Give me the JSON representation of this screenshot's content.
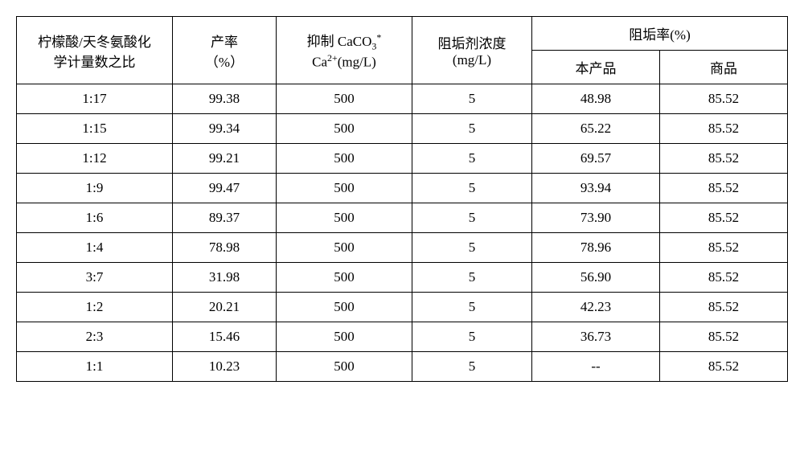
{
  "headers": {
    "ratio_line1": "柠檬酸/天冬氨酸化",
    "ratio_line2": "学计量数之比",
    "yield_line1": "产率",
    "yield_line2": "（%）",
    "caco3_prefix": "抑制 CaCO",
    "caco3_sub": "3",
    "caco3_sup": "*",
    "caco3_line2_ca": "Ca",
    "caco3_line2_sup": "2+",
    "caco3_line2_unit": "(mg/L)",
    "conc_line1": "阻垢剂浓度",
    "conc_line2": "(mg/L)",
    "rate": "阻垢率(%)",
    "rate_product": "本产品",
    "rate_commercial": "商品"
  },
  "rows": [
    {
      "ratio": "1:17",
      "yield": "99.38",
      "caco3": "500",
      "conc": "5",
      "product": "48.98",
      "commercial": "85.52"
    },
    {
      "ratio": "1:15",
      "yield": "99.34",
      "caco3": "500",
      "conc": "5",
      "product": "65.22",
      "commercial": "85.52"
    },
    {
      "ratio": "1:12",
      "yield": "99.21",
      "caco3": "500",
      "conc": "5",
      "product": "69.57",
      "commercial": "85.52"
    },
    {
      "ratio": "1:9",
      "yield": "99.47",
      "caco3": "500",
      "conc": "5",
      "product": "93.94",
      "commercial": "85.52"
    },
    {
      "ratio": "1:6",
      "yield": "89.37",
      "caco3": "500",
      "conc": "5",
      "product": "73.90",
      "commercial": "85.52"
    },
    {
      "ratio": "1:4",
      "yield": "78.98",
      "caco3": "500",
      "conc": "5",
      "product": "78.96",
      "commercial": "85.52"
    },
    {
      "ratio": "3:7",
      "yield": "31.98",
      "caco3": "500",
      "conc": "5",
      "product": "56.90",
      "commercial": "85.52"
    },
    {
      "ratio": "1:2",
      "yield": "20.21",
      "caco3": "500",
      "conc": "5",
      "product": "42.23",
      "commercial": "85.52"
    },
    {
      "ratio": "2:3",
      "yield": "15.46",
      "caco3": "500",
      "conc": "5",
      "product": "36.73",
      "commercial": "85.52"
    },
    {
      "ratio": "1:1",
      "yield": "10.23",
      "caco3": "500",
      "conc": "5",
      "product": "--",
      "commercial": "85.52"
    }
  ]
}
